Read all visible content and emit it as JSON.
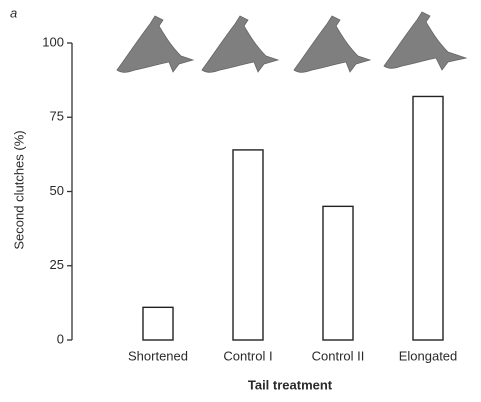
{
  "chart_data": {
    "type": "bar",
    "panel_label": "a",
    "y_label": "Second clutches (%)",
    "x_label": "Tail treatment",
    "categories": [
      "Shortened",
      "Control I",
      "Control II",
      "Elongated"
    ],
    "values": [
      11,
      64,
      45,
      82
    ],
    "color": "#ffffff",
    "ylim": [
      0,
      100
    ],
    "yticks": [
      0,
      25,
      50,
      75,
      100
    ],
    "grid": false
  }
}
